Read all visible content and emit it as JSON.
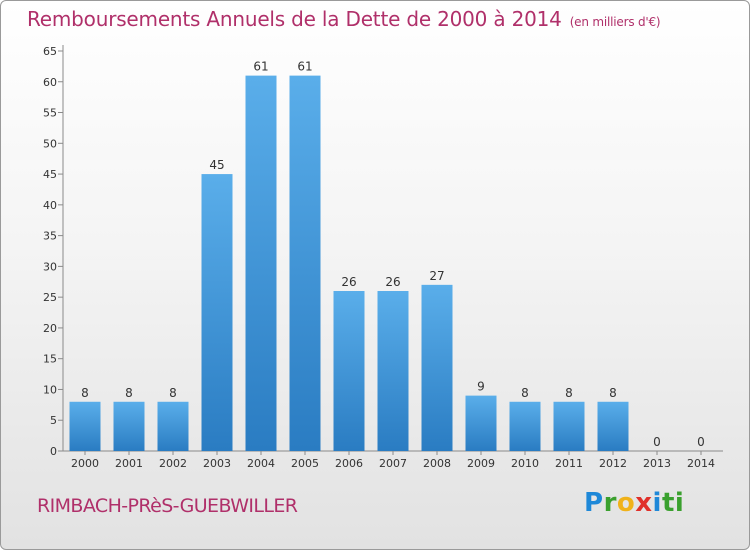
{
  "title": "Remboursements Annuels de la Dette de 2000 à 2014",
  "unit": "(en milliers d'€)",
  "place": "RIMBACH-PRèS-GUEBWILLER",
  "logo": {
    "text": "Proxiti",
    "letters": [
      "P",
      "r",
      "o",
      "x",
      "i",
      "ti"
    ]
  },
  "colors": {
    "title": "#b0306a",
    "bar_top": "#5aaeea",
    "bar_bottom": "#2a7cc2"
  },
  "chart_data": {
    "type": "bar",
    "title": "Remboursements Annuels de la Dette de 2000 à 2014",
    "xlabel": "",
    "ylabel": "",
    "categories": [
      "2000",
      "2001",
      "2002",
      "2003",
      "2004",
      "2005",
      "2006",
      "2007",
      "2008",
      "2009",
      "2010",
      "2011",
      "2012",
      "2013",
      "2014"
    ],
    "values": [
      8,
      8,
      8,
      45,
      61,
      61,
      26,
      26,
      27,
      9,
      8,
      8,
      8,
      0,
      0
    ],
    "ylim": [
      0,
      65
    ],
    "yticks": [
      0,
      5,
      10,
      15,
      20,
      25,
      30,
      35,
      40,
      45,
      50,
      55,
      60,
      65
    ],
    "grid": false,
    "legend": "none"
  }
}
